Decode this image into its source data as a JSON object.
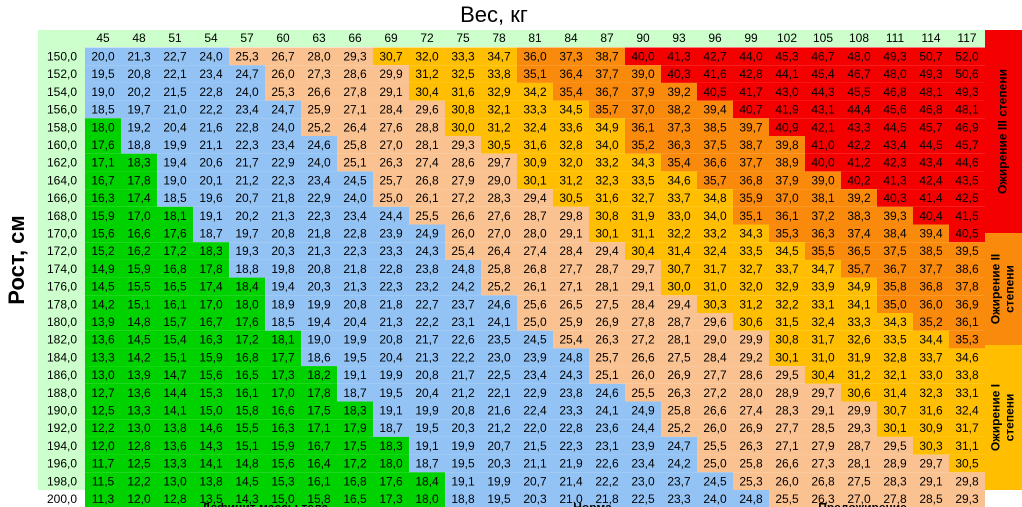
{
  "title": "Вес, кг",
  "y_label": "Рост, см",
  "weights": [
    "45",
    "48",
    "51",
    "54",
    "57",
    "60",
    "63",
    "66",
    "69",
    "72",
    "75",
    "78",
    "81",
    "84",
    "87",
    "90",
    "93",
    "96",
    "99",
    "102",
    "105",
    "108",
    "111",
    "114",
    "117"
  ],
  "heights": [
    "150,0",
    "152,0",
    "154,0",
    "156,0",
    "158,0",
    "160,0",
    "162,0",
    "164,0",
    "166,0",
    "168,0",
    "170,0",
    "172,0",
    "174,0",
    "176,0",
    "178,0",
    "180,0",
    "182,0",
    "184,0",
    "186,0",
    "188,0",
    "190,0",
    "192,0",
    "194,0",
    "196,0",
    "198,0",
    "200,0"
  ],
  "rows": [
    [
      "20,0",
      "21,3",
      "22,7",
      "24,0",
      "25,3",
      "26,7",
      "28,0",
      "29,3",
      "30,7",
      "32,0",
      "33,3",
      "34,7",
      "36,0",
      "37,3",
      "38,7",
      "40,0",
      "41,3",
      "42,7",
      "44,0",
      "45,3",
      "46,7",
      "48,0",
      "49,3",
      "50,7",
      "52,0"
    ],
    [
      "19,5",
      "20,8",
      "22,1",
      "23,4",
      "24,7",
      "26,0",
      "27,3",
      "28,6",
      "29,9",
      "31,2",
      "32,5",
      "33,8",
      "35,1",
      "36,4",
      "37,7",
      "39,0",
      "40,3",
      "41,6",
      "42,8",
      "44,1",
      "45,4",
      "46,7",
      "48,0",
      "49,3",
      "50,6"
    ],
    [
      "19,0",
      "20,2",
      "21,5",
      "22,8",
      "24,0",
      "25,3",
      "26,6",
      "27,8",
      "29,1",
      "30,4",
      "31,6",
      "32,9",
      "34,2",
      "35,4",
      "36,7",
      "37,9",
      "39,2",
      "40,5",
      "41,7",
      "43,0",
      "44,3",
      "45,5",
      "46,8",
      "48,1",
      "49,3"
    ],
    [
      "18,5",
      "19,7",
      "21,0",
      "22,2",
      "23,4",
      "24,7",
      "25,9",
      "27,1",
      "28,4",
      "29,6",
      "30,8",
      "32,1",
      "33,3",
      "34,5",
      "35,7",
      "37,0",
      "38,2",
      "39,4",
      "40,7",
      "41,9",
      "43,1",
      "44,4",
      "45,6",
      "46,8",
      "48,1"
    ],
    [
      "18,0",
      "19,2",
      "20,4",
      "21,6",
      "22,8",
      "24,0",
      "25,2",
      "26,4",
      "27,6",
      "28,8",
      "30,0",
      "31,2",
      "32,4",
      "33,6",
      "34,9",
      "36,1",
      "37,3",
      "38,5",
      "39,7",
      "40,9",
      "42,1",
      "43,3",
      "44,5",
      "45,7",
      "46,9"
    ],
    [
      "17,6",
      "18,8",
      "19,9",
      "21,1",
      "22,3",
      "23,4",
      "24,6",
      "25,8",
      "27,0",
      "28,1",
      "29,3",
      "30,5",
      "31,6",
      "32,8",
      "34,0",
      "35,2",
      "36,3",
      "37,5",
      "38,7",
      "39,8",
      "41,0",
      "42,2",
      "43,4",
      "44,5",
      "45,7"
    ],
    [
      "17,1",
      "18,3",
      "19,4",
      "20,6",
      "21,7",
      "22,9",
      "24,0",
      "25,1",
      "26,3",
      "27,4",
      "28,6",
      "29,7",
      "30,9",
      "32,0",
      "33,2",
      "34,3",
      "35,4",
      "36,6",
      "37,7",
      "38,9",
      "40,0",
      "41,2",
      "42,3",
      "43,4",
      "44,6"
    ],
    [
      "16,7",
      "17,8",
      "19,0",
      "20,1",
      "21,2",
      "22,3",
      "23,4",
      "24,5",
      "25,7",
      "26,8",
      "27,9",
      "29,0",
      "30,1",
      "31,2",
      "32,3",
      "33,5",
      "34,6",
      "35,7",
      "36,8",
      "37,9",
      "39,0",
      "40,2",
      "41,3",
      "42,4",
      "43,5"
    ],
    [
      "16,3",
      "17,4",
      "18,5",
      "19,6",
      "20,7",
      "21,8",
      "22,9",
      "24,0",
      "25,0",
      "26,1",
      "27,2",
      "28,3",
      "29,4",
      "30,5",
      "31,6",
      "32,7",
      "33,7",
      "34,8",
      "35,9",
      "37,0",
      "38,1",
      "39,2",
      "40,3",
      "41,4",
      "42,5"
    ],
    [
      "15,9",
      "17,0",
      "18,1",
      "19,1",
      "20,2",
      "21,3",
      "22,3",
      "23,4",
      "24,4",
      "25,5",
      "26,6",
      "27,6",
      "28,7",
      "29,8",
      "30,8",
      "31,9",
      "33,0",
      "34,0",
      "35,1",
      "36,1",
      "37,2",
      "38,3",
      "39,3",
      "40,4",
      "41,5"
    ],
    [
      "15,6",
      "16,6",
      "17,6",
      "18,7",
      "19,7",
      "20,8",
      "21,8",
      "22,8",
      "23,9",
      "24,9",
      "26,0",
      "27,0",
      "28,0",
      "29,1",
      "30,1",
      "31,1",
      "32,2",
      "33,2",
      "34,3",
      "35,3",
      "36,3",
      "37,4",
      "38,4",
      "39,4",
      "40,5"
    ],
    [
      "15,2",
      "16,2",
      "17,2",
      "18,3",
      "19,3",
      "20,3",
      "21,3",
      "22,3",
      "23,3",
      "24,3",
      "25,4",
      "26,4",
      "27,4",
      "28,4",
      "29,4",
      "30,4",
      "31,4",
      "32,4",
      "33,5",
      "34,5",
      "35,5",
      "36,5",
      "37,5",
      "38,5",
      "39,5"
    ],
    [
      "14,9",
      "15,9",
      "16,8",
      "17,8",
      "18,8",
      "19,8",
      "20,8",
      "21,8",
      "22,8",
      "23,8",
      "24,8",
      "25,8",
      "26,8",
      "27,7",
      "28,7",
      "29,7",
      "30,7",
      "31,7",
      "32,7",
      "33,7",
      "34,7",
      "35,7",
      "36,7",
      "37,7",
      "38,6"
    ],
    [
      "14,5",
      "15,5",
      "16,5",
      "17,4",
      "18,4",
      "19,4",
      "20,3",
      "21,3",
      "22,3",
      "23,2",
      "24,2",
      "25,2",
      "26,1",
      "27,1",
      "28,1",
      "29,1",
      "30,0",
      "31,0",
      "32,0",
      "32,9",
      "33,9",
      "34,9",
      "35,8",
      "36,8",
      "37,8"
    ],
    [
      "14,2",
      "15,1",
      "16,1",
      "17,0",
      "18,0",
      "18,9",
      "19,9",
      "20,8",
      "21,8",
      "22,7",
      "23,7",
      "24,6",
      "25,6",
      "26,5",
      "27,5",
      "28,4",
      "29,4",
      "30,3",
      "31,2",
      "32,2",
      "33,1",
      "34,1",
      "35,0",
      "36,0",
      "36,9"
    ],
    [
      "13,9",
      "14,8",
      "15,7",
      "16,7",
      "17,6",
      "18,5",
      "19,4",
      "20,4",
      "21,3",
      "22,2",
      "23,1",
      "24,1",
      "25,0",
      "25,9",
      "26,9",
      "27,8",
      "28,7",
      "29,6",
      "30,6",
      "31,5",
      "32,4",
      "33,3",
      "34,3",
      "35,2",
      "36,1"
    ],
    [
      "13,6",
      "14,5",
      "15,4",
      "16,3",
      "17,2",
      "18,1",
      "19,0",
      "19,9",
      "20,8",
      "21,7",
      "22,6",
      "23,5",
      "24,5",
      "25,4",
      "26,3",
      "27,2",
      "28,1",
      "29,0",
      "29,9",
      "30,8",
      "31,7",
      "32,6",
      "33,5",
      "34,4",
      "35,3"
    ],
    [
      "13,3",
      "14,2",
      "15,1",
      "15,9",
      "16,8",
      "17,7",
      "18,6",
      "19,5",
      "20,4",
      "21,3",
      "22,2",
      "23,0",
      "23,9",
      "24,8",
      "25,7",
      "26,6",
      "27,5",
      "28,4",
      "29,2",
      "30,1",
      "31,0",
      "31,9",
      "32,8",
      "33,7",
      "34,6"
    ],
    [
      "13,0",
      "13,9",
      "14,7",
      "15,6",
      "16,5",
      "17,3",
      "18,2",
      "19,1",
      "19,9",
      "20,8",
      "21,7",
      "22,5",
      "23,4",
      "24,3",
      "25,1",
      "26,0",
      "26,9",
      "27,7",
      "28,6",
      "29,5",
      "30,4",
      "31,2",
      "32,1",
      "33,0",
      "33,8"
    ],
    [
      "12,7",
      "13,6",
      "14,4",
      "15,3",
      "16,1",
      "17,0",
      "17,8",
      "18,7",
      "19,5",
      "20,4",
      "21,2",
      "22,1",
      "22,9",
      "23,8",
      "24,6",
      "25,5",
      "26,3",
      "27,2",
      "28,0",
      "28,9",
      "29,7",
      "30,6",
      "31,4",
      "32,3",
      "33,1"
    ],
    [
      "12,5",
      "13,3",
      "14,1",
      "15,0",
      "15,8",
      "16,6",
      "17,5",
      "18,3",
      "19,1",
      "19,9",
      "20,8",
      "21,6",
      "22,4",
      "23,3",
      "24,1",
      "24,9",
      "25,8",
      "26,6",
      "27,4",
      "28,3",
      "29,1",
      "29,9",
      "30,7",
      "31,6",
      "32,4"
    ],
    [
      "12,2",
      "13,0",
      "13,8",
      "14,6",
      "15,5",
      "16,3",
      "17,1",
      "17,9",
      "18,7",
      "19,5",
      "20,3",
      "21,2",
      "22,0",
      "22,8",
      "23,6",
      "24,4",
      "25,2",
      "26,0",
      "26,9",
      "27,7",
      "28,5",
      "29,3",
      "30,1",
      "30,9",
      "31,7"
    ],
    [
      "12,0",
      "12,8",
      "13,6",
      "14,3",
      "15,1",
      "15,9",
      "16,7",
      "17,5",
      "18,3",
      "19,1",
      "19,9",
      "20,7",
      "21,5",
      "22,3",
      "23,1",
      "23,9",
      "24,7",
      "25,5",
      "26,3",
      "27,1",
      "27,9",
      "28,7",
      "29,5",
      "30,3",
      "31,1"
    ],
    [
      "11,7",
      "12,5",
      "13,3",
      "14,1",
      "14,8",
      "15,6",
      "16,4",
      "17,2",
      "18,0",
      "18,7",
      "19,5",
      "20,3",
      "21,1",
      "21,9",
      "22,6",
      "23,4",
      "24,2",
      "25,0",
      "25,8",
      "26,6",
      "27,3",
      "28,1",
      "28,9",
      "29,7",
      "30,5"
    ],
    [
      "11,5",
      "12,2",
      "13,0",
      "13,8",
      "14,5",
      "15,3",
      "16,1",
      "16,8",
      "17,6",
      "18,4",
      "19,1",
      "19,9",
      "20,7",
      "21,4",
      "22,2",
      "23,0",
      "23,7",
      "24,5",
      "25,3",
      "26,0",
      "26,8",
      "27,5",
      "28,3",
      "29,1",
      "29,8"
    ],
    [
      "11,3",
      "12,0",
      "12,8",
      "13,5",
      "14,3",
      "15,0",
      "15,8",
      "16,5",
      "17,3",
      "18,0",
      "18,8",
      "19,5",
      "20,3",
      "21,0",
      "21,8",
      "22,5",
      "23,3",
      "24,0",
      "24,8",
      "25,5",
      "26,3",
      "27,0",
      "27,8",
      "28,5",
      "29,3"
    ]
  ],
  "bottom_legend": [
    "Дефицит массы тела",
    "Норма",
    "Предожирение"
  ],
  "side_legend": [
    [
      "Ожирение III степени"
    ],
    [
      "Ожирение II",
      "степени"
    ],
    [
      "Ожирение I",
      "степени"
    ]
  ]
}
